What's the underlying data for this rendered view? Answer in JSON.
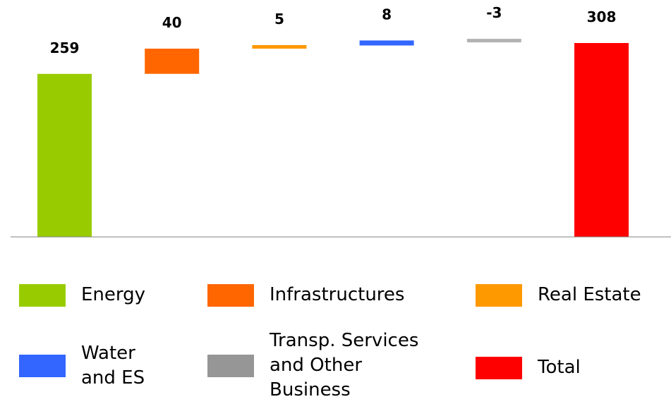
{
  "chart_data": {
    "type": "bar",
    "subtype": "waterfall",
    "categories": [
      "Energy",
      "Infrastructures",
      "Real Estate",
      "Water and ES",
      "Transp. Services and Other Business",
      "Total"
    ],
    "values": [
      259,
      40,
      5,
      8,
      -3,
      308
    ],
    "value_labels": [
      "259",
      "40",
      "5",
      "8",
      "-3",
      "308"
    ],
    "colors": [
      "#99cc00",
      "#ff6600",
      "#ff9900",
      "#3366ff",
      "#b2b2b2",
      "#ff0000"
    ],
    "title": "",
    "xlabel": "",
    "ylabel": "",
    "ylim": [
      0,
      308
    ],
    "grid": false,
    "legend_position": "bottom"
  },
  "legend": {
    "items": [
      {
        "label": "Energy",
        "color": "#99cc00"
      },
      {
        "label": "Infrastructures",
        "color": "#ff6600"
      },
      {
        "label": "Real Estate",
        "color": "#ff9900"
      },
      {
        "label": "Water\nand ES",
        "color": "#3366ff"
      },
      {
        "label": "Transp. Services\nand Other\nBusiness",
        "color": "#969696"
      },
      {
        "label": "Total",
        "color": "#ff0000"
      }
    ]
  }
}
